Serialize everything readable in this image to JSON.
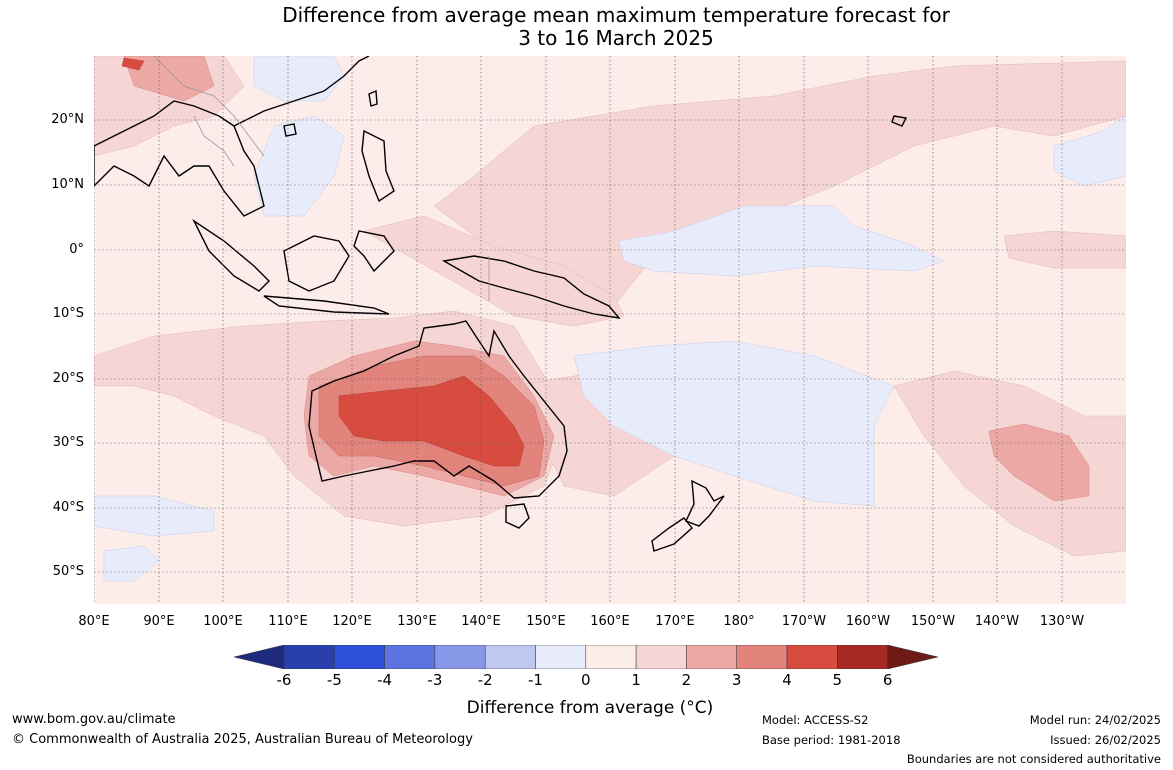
{
  "title_line1": "Difference from average mean maximum temperature forecast for",
  "title_line2": "3 to 16 March 2025",
  "lat_labels": [
    "20°N",
    "10°N",
    "0°",
    "10°S",
    "20°S",
    "30°S",
    "40°S",
    "50°S"
  ],
  "lon_labels": [
    "80°E",
    "90°E",
    "100°E",
    "110°E",
    "120°E",
    "130°E",
    "140°E",
    "150°E",
    "160°E",
    "170°E",
    "180°",
    "170°W",
    "160°W",
    "150°W",
    "140°W",
    "130°W"
  ],
  "colorbar": {
    "ticks": [
      "-6",
      "-5",
      "-4",
      "-3",
      "-2",
      "-1",
      "0",
      "1",
      "2",
      "3",
      "4",
      "5",
      "6"
    ],
    "label": "Difference from average (°C)",
    "colors": [
      "#1e2a7e",
      "#2a3fae",
      "#2e4fd8",
      "#5b74e0",
      "#8898e8",
      "#c0c8f2",
      "#e8ecfa",
      "#fcecea",
      "#f5d6d4",
      "#eca8a4",
      "#e2837c",
      "#d84c40",
      "#a92a24",
      "#6e1a16"
    ]
  },
  "footer": {
    "website": "www.bom.gov.au/climate",
    "copyright": "© Commonwealth of Australia 2025, Australian Bureau of Meteorology",
    "model": "Model: ACCESS-S2",
    "base_period": "Base period: 1981-2018",
    "model_run": "Model run: 24/02/2025",
    "issued": "Issued: 26/02/2025",
    "disclaimer": "Boundaries are not considered authoritative"
  }
}
